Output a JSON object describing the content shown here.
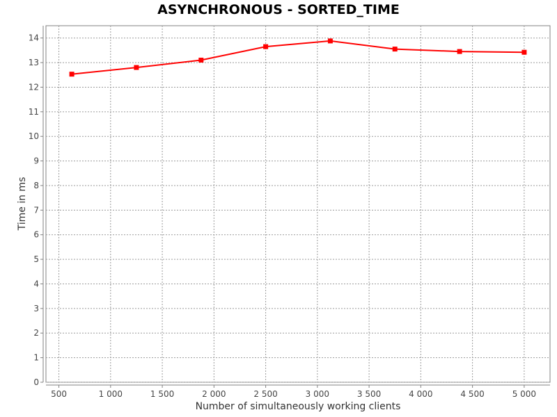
{
  "chart_data": {
    "type": "line",
    "title": "ASYNCHRONOUS - SORTED_TIME",
    "xlabel": "Number of simultaneously working clients",
    "ylabel": "Time in ms",
    "xlim": [
      375,
      5250
    ],
    "ylim": [
      0,
      14.5
    ],
    "x_ticks": [
      500,
      1000,
      1500,
      2000,
      2500,
      3000,
      3500,
      4000,
      4500,
      5000
    ],
    "x_tick_labels": [
      "500",
      "1 000",
      "1 500",
      "2 000",
      "2 500",
      "3 000",
      "3 500",
      "4 000",
      "4 500",
      "5 000"
    ],
    "y_ticks": [
      0,
      1,
      2,
      3,
      4,
      5,
      6,
      7,
      8,
      9,
      10,
      11,
      12,
      13,
      14
    ],
    "grid": true,
    "series": [
      {
        "color": "#ff0000",
        "x": [
          625,
          1250,
          1875,
          2500,
          3125,
          3750,
          4375,
          5000
        ],
        "y": [
          12.53,
          12.8,
          13.1,
          13.65,
          13.88,
          13.55,
          13.45,
          13.42
        ]
      }
    ]
  }
}
